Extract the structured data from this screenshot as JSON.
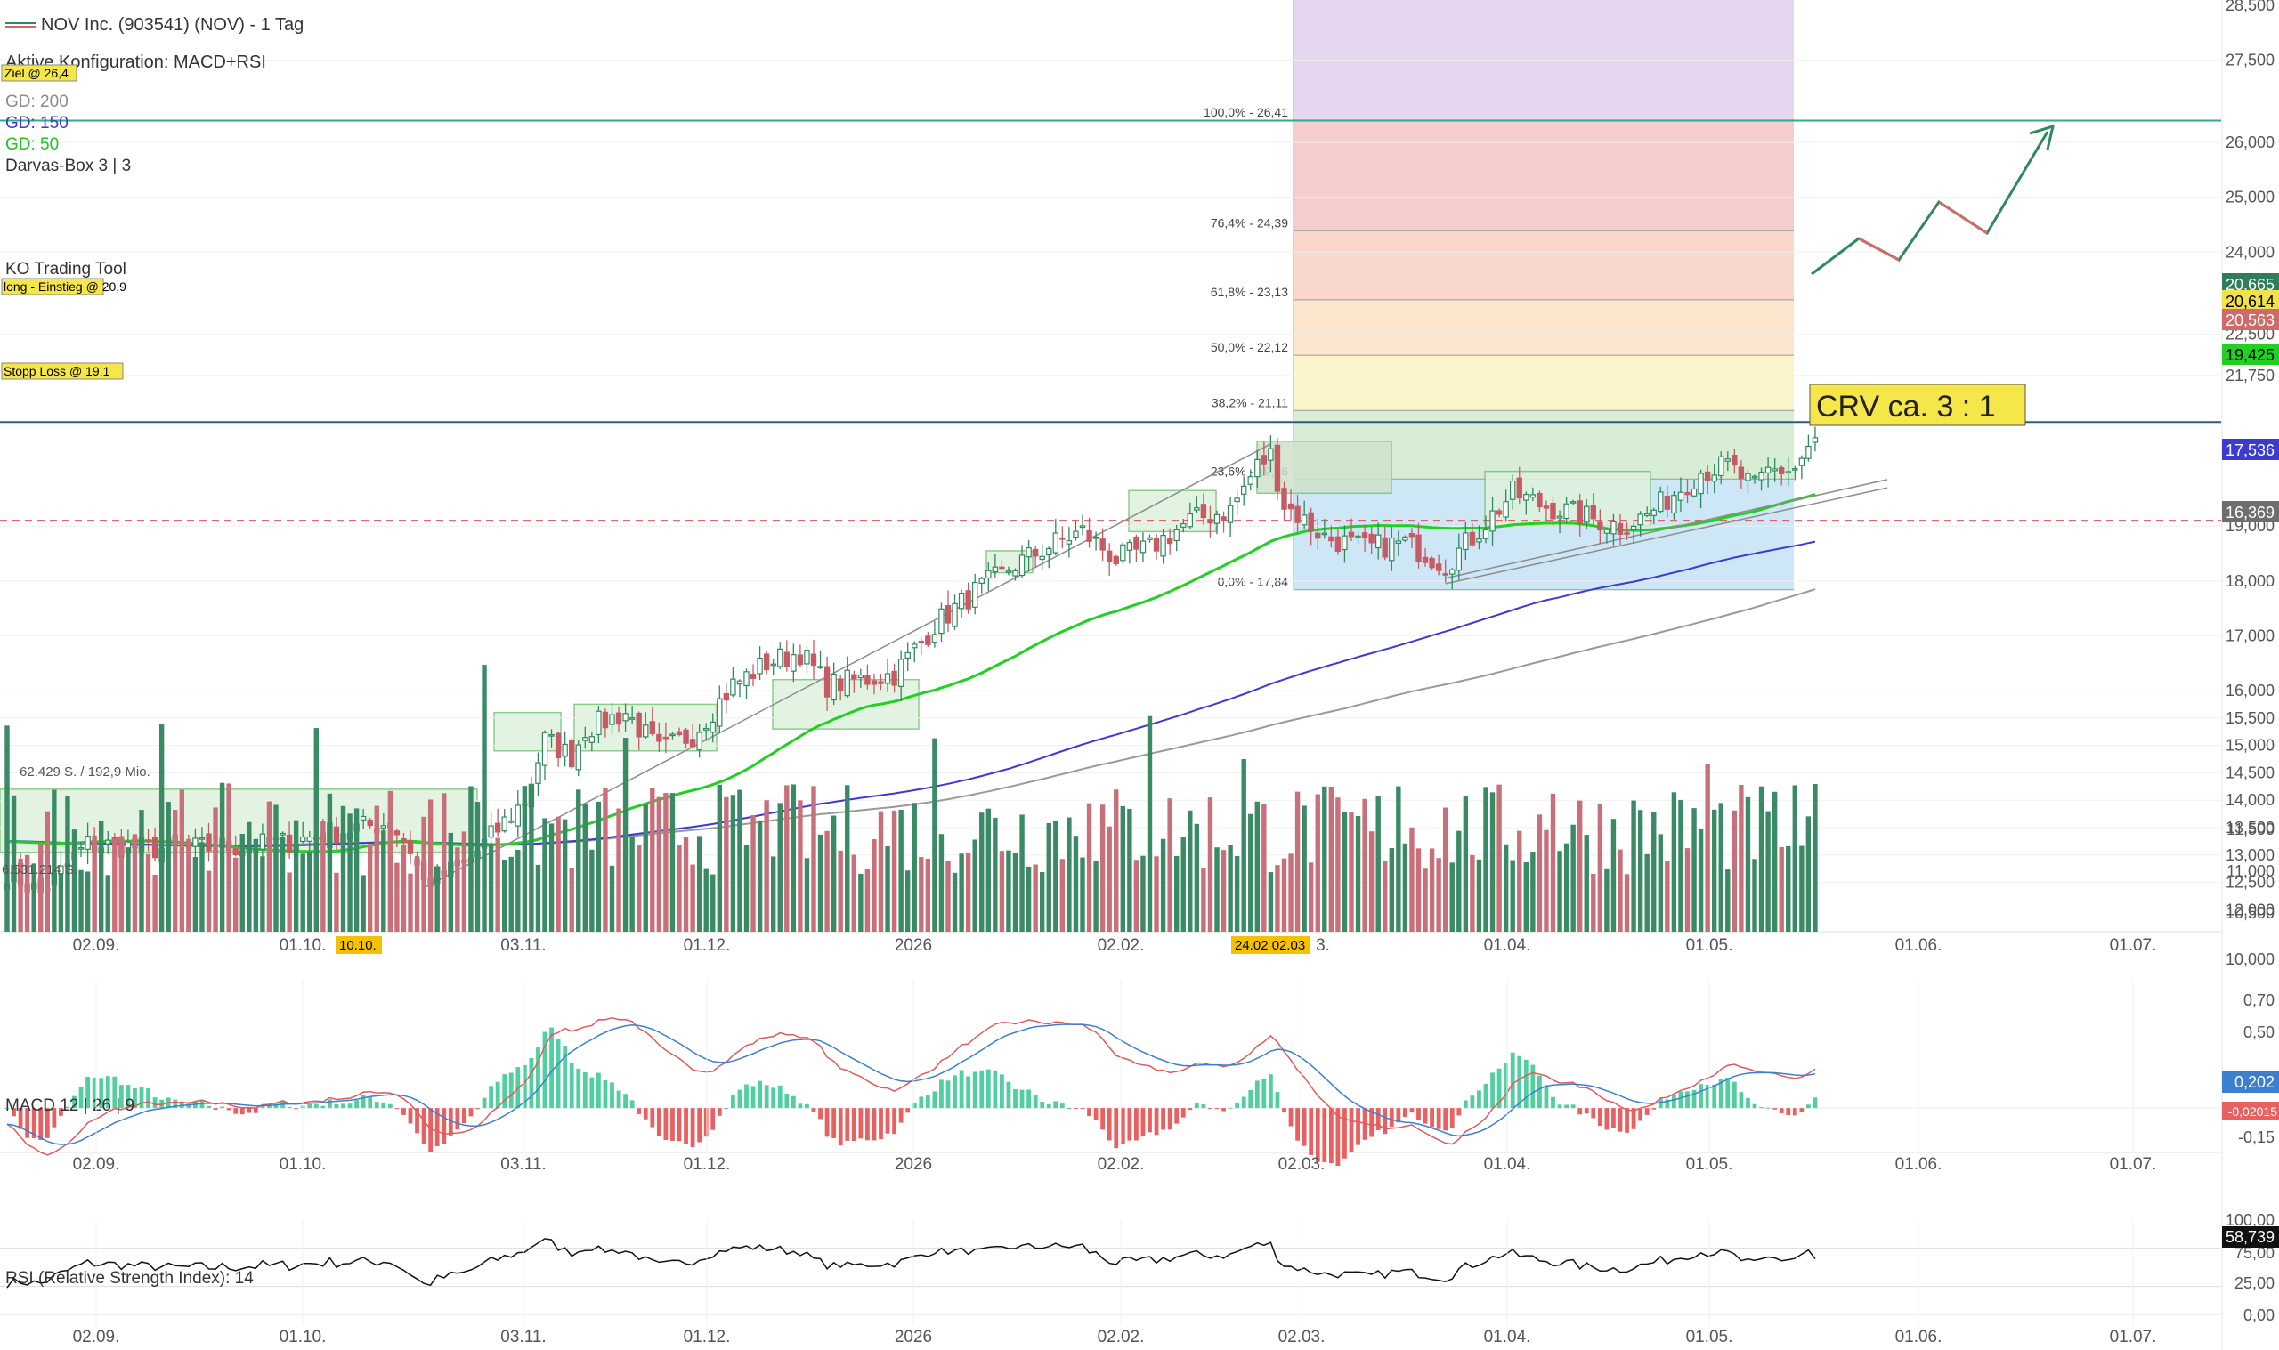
{
  "header": {
    "title": "NOV Inc. (903541) (NOV) - 1 Tag",
    "config": "Aktive Konfiguration: MACD+RSI",
    "indicators": [
      {
        "label": "GD: 200",
        "color": "#8c8c8c"
      },
      {
        "label": "GD: 150",
        "color": "#3b3bd0"
      },
      {
        "label": "GD: 50",
        "color": "#22c322"
      },
      {
        "label": "Darvas-Box 3 | 3",
        "color": "#333333"
      }
    ],
    "ko_tool": "KO Trading Tool"
  },
  "annotations": {
    "target": "Ziel @ 26,4",
    "entry": "long - Einstieg @ 20,9",
    "stop": "Stopp Loss @ 19,1",
    "crv": "CRV ca. 3 : 1",
    "vol_label_1": "62.429 S. / 192,9 Mio.",
    "vol_label_2": "6.531.214 S.",
    "date_flag_1": "10.10.",
    "date_flag_2": "24.02 02.03"
  },
  "fibonacci": [
    {
      "label": "100,0% - 26,41",
      "price": 26.41,
      "fill": "#e4d2ee"
    },
    {
      "label": "76,4% - 24,39",
      "price": 24.39,
      "fill": "#f5c8c8"
    },
    {
      "label": "61,8% - 23,13",
      "price": 23.13,
      "fill": "#f8d3c6"
    },
    {
      "label": "50,0% - 22,12",
      "price": 22.12,
      "fill": "#fbe3c8"
    },
    {
      "label": "38,2% - 21,11",
      "price": 21.11,
      "fill": "#fbf2c4"
    },
    {
      "label": "23,6% - 19,86",
      "price": 19.86,
      "fill": "#d3ecd0"
    },
    {
      "label": "0,0% - 17,84",
      "price": 17.84,
      "fill": "#c8e4f5"
    }
  ],
  "x_axis": {
    "labels": [
      "02.09.",
      "01.10.",
      "03.11.",
      "01.12.",
      "2026",
      "02.02.",
      "02.03.",
      "01.04.",
      "01.05.",
      "01.06.",
      "01.07."
    ]
  },
  "price_axis": {
    "ticks": [
      "28,500",
      "27,500",
      "26,000",
      "25,000",
      "24,000",
      "22,500",
      "21,750",
      "19,000",
      "18,000",
      "17,000",
      "16,000",
      "15,500",
      "15,000",
      "14,500",
      "14,000",
      "13,500",
      "13,000",
      "12,500",
      "12,000",
      "11,500",
      "11,000",
      "10,500",
      "10,000"
    ],
    "badges": [
      {
        "text": "20,665",
        "bg": "#2e7d5b",
        "fg": "#ffffff"
      },
      {
        "text": "20,614",
        "bg": "#f2e24a",
        "fg": "#000000"
      },
      {
        "text": "20,563",
        "bg": "#d06a6a",
        "fg": "#ffffff"
      },
      {
        "text": "19,425",
        "bg": "#22d022",
        "fg": "#000000"
      },
      {
        "text": "17,536",
        "bg": "#3b3bd0",
        "fg": "#ffffff"
      },
      {
        "text": "16,369",
        "bg": "#6e6e6e",
        "fg": "#ffffff"
      }
    ]
  },
  "macd": {
    "label": "MACD 12 | 26 | 9",
    "ticks": [
      "0,70",
      "0,50",
      "-0,15"
    ],
    "badge_signal": "0,202",
    "badge_hist": "-0,02015"
  },
  "rsi": {
    "label": "RSI (Relative Strength Index): 14",
    "ticks": [
      "100,00",
      "75,00",
      "25,00",
      "0,00"
    ],
    "badge": "58,739"
  },
  "chart_data": {
    "type": "candlestick",
    "title": "NOV Inc. (903541) (NOV) - 1 Tag",
    "y_label": "",
    "ylim": [
      11.6,
      28.6
    ],
    "moving_averages": [
      "GD: 200",
      "GD: 150",
      "GD: 50"
    ],
    "levels": {
      "target": 26.4,
      "entry": 20.9,
      "stop": 19.1
    },
    "last_values": {
      "close": 20.614,
      "ma50": 19.425,
      "ma150": 17.536,
      "ma200": 16.369,
      "rsi": 58.739,
      "macd_signal": 0.202,
      "macd_hist": -0.02015
    },
    "anchors": [
      [
        0,
        12.7
      ],
      [
        5,
        12.3
      ],
      [
        12,
        13.2
      ],
      [
        25,
        13.1
      ],
      [
        40,
        13.2
      ],
      [
        48,
        13.4
      ],
      [
        57,
        13.6
      ],
      [
        60,
        13.1
      ],
      [
        62,
        12.5
      ],
      [
        68,
        12.8
      ],
      [
        74,
        13.6
      ],
      [
        77,
        14.0
      ],
      [
        80,
        15.1
      ],
      [
        84,
        14.8
      ],
      [
        86,
        15.3
      ],
      [
        92,
        15.6
      ],
      [
        97,
        14.9
      ],
      [
        102,
        15.2
      ],
      [
        108,
        16.1
      ],
      [
        113,
        16.5
      ],
      [
        118,
        16.7
      ],
      [
        122,
        16.1
      ],
      [
        127,
        16.2
      ],
      [
        132,
        16.3
      ],
      [
        138,
        17.2
      ],
      [
        144,
        17.8
      ],
      [
        150,
        18.3
      ],
      [
        156,
        18.7
      ],
      [
        160,
        18.9
      ],
      [
        165,
        18.4
      ],
      [
        170,
        18.6
      ],
      [
        176,
        19.1
      ],
      [
        182,
        19.3
      ],
      [
        186,
        20.1
      ],
      [
        188,
        20.3
      ],
      [
        190,
        19.4
      ],
      [
        196,
        18.8
      ],
      [
        202,
        18.6
      ],
      [
        208,
        18.7
      ],
      [
        214,
        18.3
      ],
      [
        218,
        18.8
      ],
      [
        224,
        19.6
      ],
      [
        228,
        19.4
      ],
      [
        234,
        19.2
      ],
      [
        240,
        19.0
      ],
      [
        244,
        19.2
      ],
      [
        248,
        19.6
      ],
      [
        252,
        20.0
      ],
      [
        256,
        20.1
      ],
      [
        260,
        19.7
      ],
      [
        262,
        20.0
      ],
      [
        266,
        20.05
      ],
      [
        269,
        20.614
      ]
    ],
    "volume_range": [
      0,
      2.8
    ],
    "macd_range": [
      -0.3,
      0.75
    ],
    "rsi_range": [
      0,
      100
    ]
  }
}
